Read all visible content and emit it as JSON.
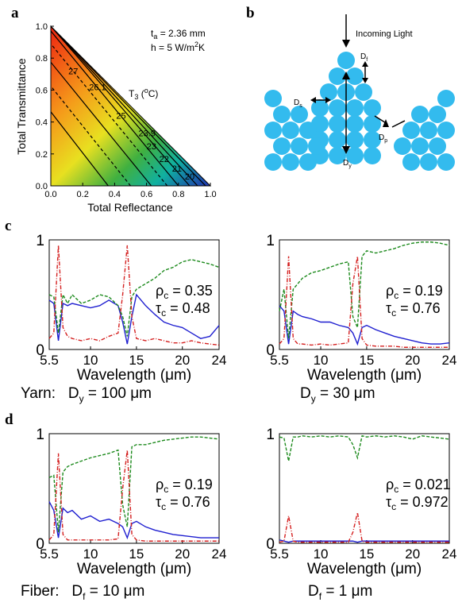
{
  "panels": {
    "a": "a",
    "b": "b",
    "c": "c",
    "d": "d"
  },
  "diagram": {
    "incoming_light": "Incoming Light",
    "d_f": "D",
    "d_f_sub": "f",
    "d_s": "D",
    "d_s_sub": "s",
    "d_p": "D",
    "d_p_sub": "p",
    "d_y": "D",
    "d_y_sub": "y"
  },
  "notes": {
    "yarn_label": "Yarn:",
    "yarn_left": "D",
    "yarn_left_sub": "y",
    "yarn_left_value": " = 100 μm",
    "yarn_right": "D",
    "yarn_right_sub": "y",
    "yarn_right_value": " = 30 μm",
    "fiber_label": "Fiber:",
    "fiber_left": "D",
    "fiber_left_sub": "f",
    "fiber_left_value": " = 10 μm",
    "fiber_right": "D",
    "fiber_right_sub": "f",
    "fiber_right_value": " = 1 μm"
  },
  "chart_data": [
    {
      "id": "a",
      "type": "heatmap",
      "xlabel": "Total Reflectance",
      "ylabel": "Total Transmittance",
      "xlim": [
        0,
        1
      ],
      "ylim": [
        0,
        1
      ],
      "x_ticks": [
        "0.0",
        "0.2",
        "0.4",
        "0.6",
        "0.8",
        "1.0"
      ],
      "y_ticks": [
        "0.0",
        "0.2",
        "0.4",
        "0.6",
        "0.8",
        "1.0"
      ],
      "annotations": {
        "ta": "t",
        "ta_sub": "a",
        "ta_value": " = 2.36 mm",
        "h": "h = 5 W/m",
        "h_sup": "2",
        "h_unit": "K",
        "t3": "T",
        "t3_sub": "3",
        "t3_unit": " (",
        "t3_sup": "o",
        "t3_end": "C)"
      },
      "contours": [
        {
          "label": "27",
          "dashed": false,
          "x0_at_y0": 0.36,
          "label_x": 0.11,
          "label_y": 0.7
        },
        {
          "label": "26.1",
          "dashed": true,
          "x0_at_y0": 0.5,
          "label_x": 0.24,
          "label_y": 0.6
        },
        {
          "label": "25",
          "dashed": false,
          "x0_at_y0": 0.63,
          "label_x": 0.41,
          "label_y": 0.42
        },
        {
          "label": "23.9",
          "dashed": true,
          "x0_at_y0": 0.73,
          "label_x": 0.55,
          "label_y": 0.31
        },
        {
          "label": "23",
          "dashed": false,
          "x0_at_y0": 0.8,
          "label_x": 0.6,
          "label_y": 0.23
        },
        {
          "label": "22",
          "dashed": false,
          "x0_at_y0": 0.87,
          "label_x": 0.68,
          "label_y": 0.15
        },
        {
          "label": "21",
          "dashed": false,
          "x0_at_y0": 0.92,
          "label_x": 0.76,
          "label_y": 0.09
        },
        {
          "label": "20",
          "dashed": false,
          "x0_at_y0": 0.97,
          "label_x": 0.84,
          "label_y": 0.04
        }
      ]
    },
    {
      "id": "c-left",
      "type": "line",
      "xlabel": "Wavelength (μm)",
      "xlim": [
        5.5,
        24
      ],
      "ylim": [
        0,
        1
      ],
      "x_ticks": [
        "5.5",
        "10",
        "15",
        "20",
        "24"
      ],
      "x_tick_values": [
        5.5,
        10,
        15,
        20,
        24
      ],
      "y_ticks": [
        "0",
        "1"
      ],
      "rho_label": "ρ",
      "rho_sub": "c",
      "rho_value": " = 0.35",
      "tau_label": "τ",
      "tau_sub": "c",
      "tau_value": " = 0.48",
      "x": [
        5.5,
        6,
        6.5,
        7,
        7.5,
        8,
        9,
        10,
        11,
        12,
        13,
        13.5,
        14,
        14.5,
        15,
        16,
        17,
        18,
        19,
        20,
        21,
        22,
        23,
        24
      ],
      "series": [
        {
          "color": "#1f1fd0",
          "dash": "solid",
          "values": [
            0.45,
            0.42,
            0.08,
            0.42,
            0.4,
            0.42,
            0.4,
            0.38,
            0.4,
            0.45,
            0.4,
            0.25,
            0.05,
            0.3,
            0.5,
            0.4,
            0.32,
            0.25,
            0.22,
            0.2,
            0.15,
            0.1,
            0.12,
            0.22
          ]
        },
        {
          "color": "#1c8a1c",
          "dash": "dashed",
          "values": [
            0.5,
            0.48,
            0.15,
            0.5,
            0.42,
            0.5,
            0.42,
            0.45,
            0.5,
            0.48,
            0.4,
            0.3,
            0.12,
            0.48,
            0.55,
            0.6,
            0.65,
            0.72,
            0.75,
            0.8,
            0.82,
            0.8,
            0.78,
            0.75
          ]
        },
        {
          "color": "#d42020",
          "dash": "dashdot",
          "values": [
            0.1,
            0.15,
            0.95,
            0.2,
            0.12,
            0.1,
            0.08,
            0.1,
            0.08,
            0.12,
            0.15,
            0.5,
            0.95,
            0.3,
            0.1,
            0.08,
            0.1,
            0.08,
            0.06,
            0.06,
            0.08,
            0.06,
            0.05,
            0.04
          ]
        }
      ]
    },
    {
      "id": "c-right",
      "type": "line",
      "xlabel": "Wavelength (μm)",
      "xlim": [
        5.5,
        24
      ],
      "ylim": [
        0,
        1
      ],
      "x_ticks": [
        "5.5",
        "10",
        "15",
        "20",
        "24"
      ],
      "x_tick_values": [
        5.5,
        10,
        15,
        20,
        24
      ],
      "y_ticks": [
        "0",
        "1"
      ],
      "rho_label": "ρ",
      "rho_sub": "c",
      "rho_value": " = 0.19",
      "tau_label": "τ",
      "tau_sub": "c",
      "tau_value": " = 0.76",
      "x": [
        5.5,
        6,
        6.5,
        7,
        7.5,
        8,
        9,
        10,
        11,
        12,
        13,
        13.5,
        14,
        14.5,
        15,
        16,
        17,
        18,
        19,
        20,
        21,
        22,
        23,
        24
      ],
      "series": [
        {
          "color": "#1f1fd0",
          "dash": "solid",
          "values": [
            0.4,
            0.35,
            0.05,
            0.35,
            0.32,
            0.3,
            0.28,
            0.25,
            0.25,
            0.22,
            0.2,
            0.15,
            0.05,
            0.2,
            0.22,
            0.18,
            0.15,
            0.12,
            0.1,
            0.08,
            0.06,
            0.05,
            0.05,
            0.06
          ]
        },
        {
          "color": "#1c8a1c",
          "dash": "dashed",
          "values": [
            0.35,
            0.55,
            0.1,
            0.55,
            0.6,
            0.65,
            0.7,
            0.72,
            0.75,
            0.78,
            0.8,
            0.3,
            0.2,
            0.85,
            0.9,
            0.88,
            0.9,
            0.92,
            0.95,
            0.97,
            0.98,
            0.98,
            0.97,
            0.95
          ]
        },
        {
          "color": "#d42020",
          "dash": "dashdot",
          "values": [
            0.05,
            0.1,
            0.85,
            0.1,
            0.05,
            0.05,
            0.04,
            0.05,
            0.04,
            0.05,
            0.06,
            0.6,
            0.85,
            0.1,
            0.04,
            0.03,
            0.03,
            0.03,
            0.02,
            0.02,
            0.02,
            0.02,
            0.02,
            0.02
          ]
        }
      ]
    },
    {
      "id": "d-left",
      "type": "line",
      "xlabel": "Wavelength (μm)",
      "xlim": [
        5.5,
        24
      ],
      "ylim": [
        0,
        1
      ],
      "x_ticks": [
        "5.5",
        "10",
        "15",
        "20",
        "24"
      ],
      "x_tick_values": [
        5.5,
        10,
        15,
        20,
        24
      ],
      "y_ticks": [
        "0",
        "1"
      ],
      "rho_label": "ρ",
      "rho_sub": "c",
      "rho_value": " = 0.19",
      "tau_label": "τ",
      "tau_sub": "c",
      "tau_value": " = 0.76",
      "x": [
        5.5,
        6,
        6.5,
        7,
        7.5,
        8,
        9,
        10,
        11,
        12,
        13,
        13.5,
        14,
        14.5,
        15,
        16,
        17,
        18,
        19,
        20,
        21,
        22,
        23,
        24
      ],
      "series": [
        {
          "color": "#1f1fd0",
          "dash": "solid",
          "values": [
            0.38,
            0.3,
            0.05,
            0.32,
            0.28,
            0.3,
            0.22,
            0.25,
            0.2,
            0.22,
            0.18,
            0.15,
            0.05,
            0.18,
            0.2,
            0.15,
            0.12,
            0.1,
            0.08,
            0.07,
            0.06,
            0.05,
            0.05,
            0.05
          ]
        },
        {
          "color": "#1c8a1c",
          "dash": "dashed",
          "values": [
            0.6,
            0.62,
            0.1,
            0.65,
            0.7,
            0.72,
            0.75,
            0.78,
            0.8,
            0.82,
            0.85,
            0.35,
            0.15,
            0.88,
            0.9,
            0.9,
            0.92,
            0.94,
            0.95,
            0.96,
            0.97,
            0.97,
            0.96,
            0.95
          ]
        },
        {
          "color": "#d42020",
          "dash": "dashdot",
          "values": [
            0.03,
            0.08,
            0.82,
            0.08,
            0.03,
            0.03,
            0.03,
            0.03,
            0.03,
            0.03,
            0.04,
            0.5,
            0.85,
            0.08,
            0.03,
            0.02,
            0.02,
            0.02,
            0.02,
            0.02,
            0.02,
            0.02,
            0.02,
            0.02
          ]
        }
      ]
    },
    {
      "id": "d-right",
      "type": "line",
      "xlabel": "Wavelength (μm)",
      "xlim": [
        5.5,
        24
      ],
      "ylim": [
        0,
        1
      ],
      "x_ticks": [
        "5.5",
        "10",
        "15",
        "20",
        "24"
      ],
      "x_tick_values": [
        5.5,
        10,
        15,
        20,
        24
      ],
      "y_ticks": [
        "0",
        "1"
      ],
      "rho_label": "ρ",
      "rho_sub": "c",
      "rho_value": " = 0.021",
      "tau_label": "τ",
      "tau_sub": "c",
      "tau_value": " = 0.972",
      "x": [
        5.5,
        6,
        6.5,
        7,
        7.5,
        8,
        9,
        10,
        11,
        12,
        13,
        13.5,
        14,
        14.5,
        15,
        16,
        17,
        18,
        19,
        20,
        21,
        22,
        23,
        24
      ],
      "series": [
        {
          "color": "#1f1fd0",
          "dash": "solid",
          "values": [
            0.03,
            0.02,
            0.01,
            0.02,
            0.02,
            0.02,
            0.02,
            0.02,
            0.02,
            0.02,
            0.02,
            0.02,
            0.01,
            0.02,
            0.02,
            0.02,
            0.02,
            0.02,
            0.02,
            0.02,
            0.02,
            0.02,
            0.02,
            0.02
          ]
        },
        {
          "color": "#1c8a1c",
          "dash": "dashed",
          "values": [
            0.97,
            0.96,
            0.75,
            0.97,
            0.97,
            0.98,
            0.97,
            0.98,
            0.97,
            0.98,
            0.97,
            0.9,
            0.78,
            0.98,
            0.97,
            0.98,
            0.97,
            0.98,
            0.97,
            0.95,
            0.98,
            0.97,
            0.96,
            0.95
          ]
        },
        {
          "color": "#d42020",
          "dash": "dashdot",
          "values": [
            0.01,
            0.02,
            0.25,
            0.02,
            0.01,
            0.01,
            0.01,
            0.01,
            0.01,
            0.01,
            0.01,
            0.1,
            0.28,
            0.02,
            0.01,
            0.01,
            0.01,
            0.01,
            0.01,
            0.01,
            0.01,
            0.01,
            0.01,
            0.01
          ]
        }
      ]
    }
  ]
}
